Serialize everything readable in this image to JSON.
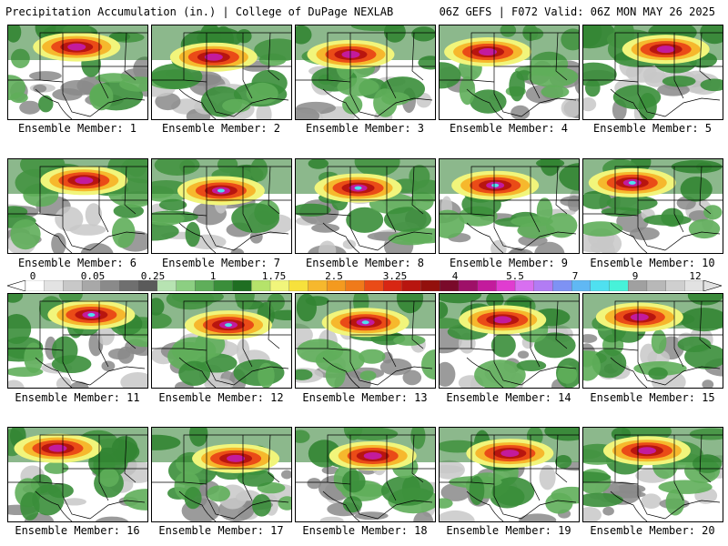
{
  "header": {
    "title": "Precipitation Accumulation (in.) | College of DuPage NEXLAB",
    "run_info": "06Z GEFS | F072 Valid: 06Z MON MAY 26 2025"
  },
  "colorbar": {
    "labels": [
      "0",
      "0.05",
      "0.25",
      "1",
      "1.75",
      "2.5",
      "3.25",
      "4",
      "5.5",
      "7",
      "9",
      "12"
    ],
    "colors": [
      "#ffffff",
      "#e3e3e3",
      "#c8c8c8",
      "#a8a8a8",
      "#8a8a8a",
      "#6f6f6f",
      "#5a5a5a",
      "#b7e3b2",
      "#8ccf82",
      "#5fae5a",
      "#3a8e3a",
      "#1f6e22",
      "#b5e36a",
      "#f1f57b",
      "#f7e13c",
      "#f6b82d",
      "#f49a1f",
      "#f07a1a",
      "#ea4b17",
      "#d82613",
      "#b8150f",
      "#93100c",
      "#7a0a2a",
      "#9e1068",
      "#c31b9c",
      "#e03cd0",
      "#d86ff0",
      "#b27cf4",
      "#7e92f4",
      "#60b8f4",
      "#4fe0f0",
      "#47f2d9",
      "#a0a0a0",
      "#b8b8b8",
      "#cfcfcf",
      "#e2e2e2"
    ]
  },
  "members": [
    {
      "caption": "Ensemble Member: 1"
    },
    {
      "caption": "Ensemble Member: 2"
    },
    {
      "caption": "Ensemble Member: 3"
    },
    {
      "caption": "Ensemble Member: 4"
    },
    {
      "caption": "Ensemble Member: 5"
    },
    {
      "caption": "Ensemble Member: 6"
    },
    {
      "caption": "Ensemble Member: 7"
    },
    {
      "caption": "Ensemble Member: 8"
    },
    {
      "caption": "Ensemble Member: 9"
    },
    {
      "caption": "Ensemble Member: 10"
    },
    {
      "caption": "Ensemble Member: 11"
    },
    {
      "caption": "Ensemble Member: 12"
    },
    {
      "caption": "Ensemble Member: 13"
    },
    {
      "caption": "Ensemble Member: 14"
    },
    {
      "caption": "Ensemble Member: 15"
    },
    {
      "caption": "Ensemble Member: 16"
    },
    {
      "caption": "Ensemble Member: 17"
    },
    {
      "caption": "Ensemble Member: 18"
    },
    {
      "caption": "Ensemble Member: 19"
    },
    {
      "caption": "Ensemble Member: 20"
    }
  ]
}
